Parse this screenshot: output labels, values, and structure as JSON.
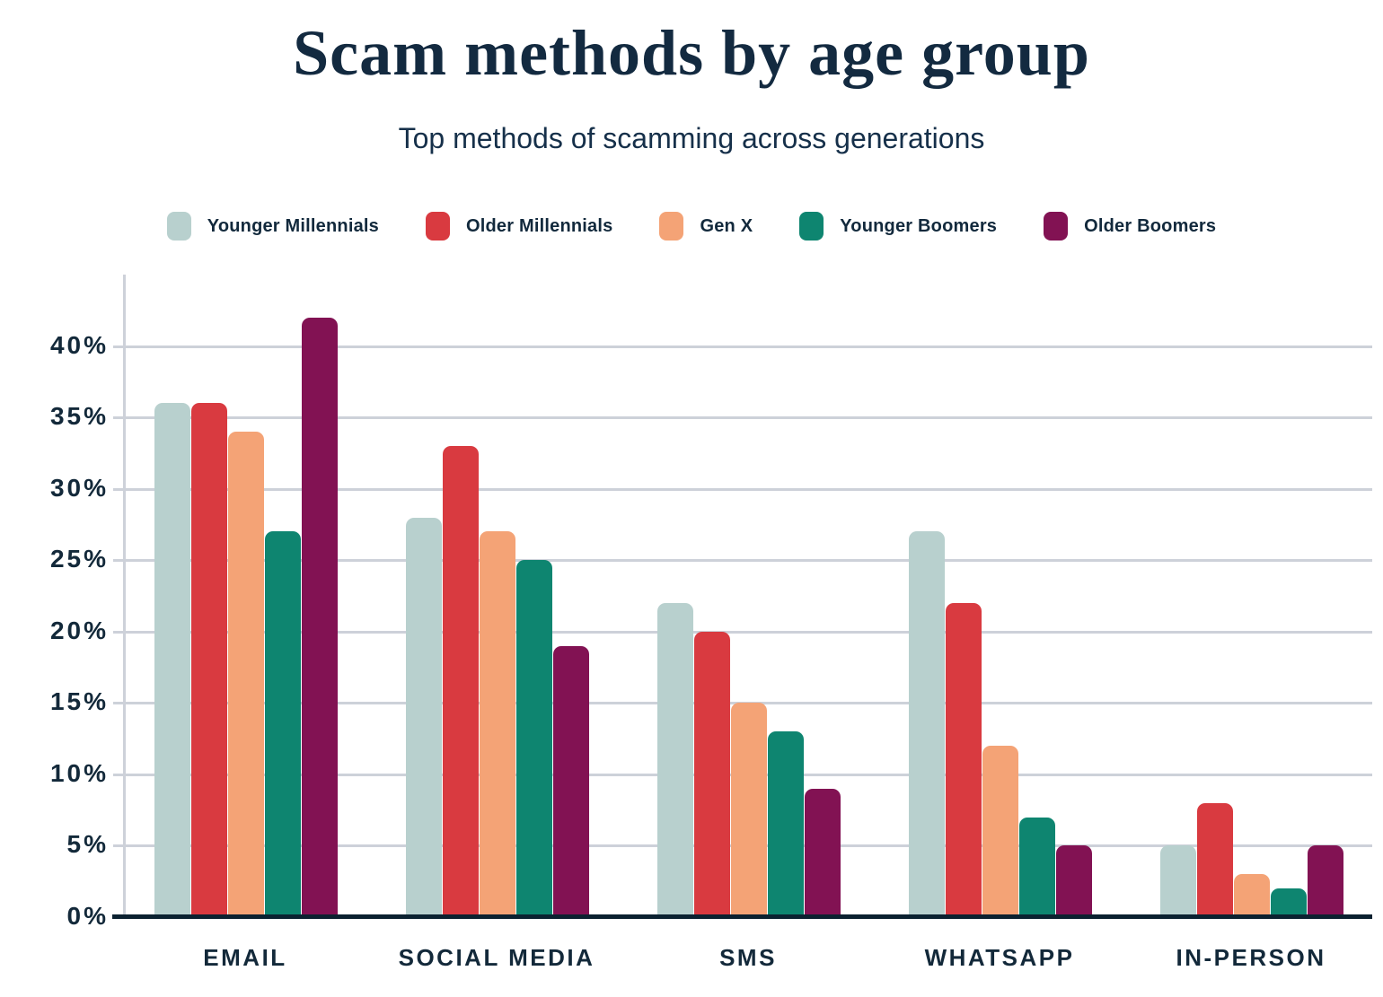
{
  "chart_data": {
    "type": "bar",
    "title": "Scam methods by age group",
    "subtitle": "Top methods of scamming across generations",
    "categories": [
      "EMAIL",
      "SOCIAL MEDIA",
      "SMS",
      "WHATSAPP",
      "IN-PERSON"
    ],
    "series": [
      {
        "name": "Younger Millennials",
        "color": "#b8d0ce",
        "values": [
          36,
          28,
          22,
          27,
          5
        ]
      },
      {
        "name": "Older Millennials",
        "color": "#d93a40",
        "values": [
          36,
          33,
          20,
          22,
          8
        ]
      },
      {
        "name": "Gen X",
        "color": "#f4a376",
        "values": [
          34,
          27,
          15,
          12,
          3
        ]
      },
      {
        "name": "Younger Boomers",
        "color": "#0e8570",
        "values": [
          27,
          25,
          13,
          7,
          2
        ]
      },
      {
        "name": "Older Boomers",
        "color": "#821253",
        "values": [
          42,
          19,
          9,
          5,
          5
        ]
      }
    ],
    "y_axis": {
      "unit": "%",
      "tick_values": [
        40,
        35,
        30,
        25,
        20,
        15,
        10,
        5,
        0
      ],
      "tick_labels": [
        "40%",
        "35%",
        "30%",
        "25%",
        "20%",
        "15%",
        "10%",
        "5%",
        "0%"
      ],
      "axis_max": 45
    },
    "grid": "horizontal",
    "legend_position": "top",
    "colors": {
      "text_navy": "#13293a",
      "title_navy": "#132a40",
      "gridline": "#cdd1d9",
      "baseline": "#0b2130",
      "background": "#ffffff"
    }
  }
}
